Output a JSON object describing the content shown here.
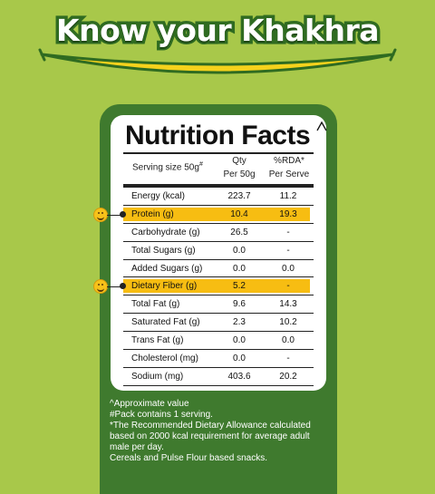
{
  "headline": "Know your Khakhra",
  "label": {
    "title": "Nutrition Facts",
    "title_mark": "^",
    "columns": {
      "serving": "Serving size 50g",
      "serving_mark": "#",
      "qty_line1": "Qty",
      "qty_line2": "Per 50g",
      "rda_line1": "%RDA*",
      "rda_line2": "Per Serve"
    },
    "rows": [
      {
        "name": "Energy (kcal)",
        "qty": "223.7",
        "rda": "11.2"
      },
      {
        "name": "Protein (g)",
        "qty": "10.4",
        "rda": "19.3"
      },
      {
        "name": "Carbohydrate (g)",
        "qty": "26.5",
        "rda": "-"
      },
      {
        "name": "Total Sugars (g)",
        "qty": "0.0",
        "rda": "-"
      },
      {
        "name": "Added Sugars (g)",
        "qty": "0.0",
        "rda": "0.0"
      },
      {
        "name": "Dietary Fiber (g)",
        "qty": "5.2",
        "rda": "-"
      },
      {
        "name": "Total Fat (g)",
        "qty": "9.6",
        "rda": "14.3"
      },
      {
        "name": "Saturated Fat (g)",
        "qty": "2.3",
        "rda": "10.2"
      },
      {
        "name": "Trans Fat (g)",
        "qty": "0.0",
        "rda": "0.0"
      },
      {
        "name": "Cholesterol (mg)",
        "qty": "0.0",
        "rda": "-"
      },
      {
        "name": "Sodium (mg)",
        "qty": "403.6",
        "rda": "20.2"
      }
    ],
    "highlighted_rows": [
      "Protein (g)",
      "Dietary Fiber (g)"
    ]
  },
  "footnotes": [
    "^Approximate value",
    "#Pack contains 1 serving.",
    "*The Recommended Dietary Allowance calculated based on 2000 kcal requirement for average adult male per day.",
    "Cereals and Pulse Flour based snacks."
  ],
  "colors": {
    "background": "#a8c84a",
    "panel": "#3f7a2e",
    "highlight": "#f7bd12",
    "headline_outline": "#2f6b21",
    "smile_curve": "#f5d21c"
  },
  "icons": {
    "highlight_marker": "smiling-face-icon",
    "headline_underline": "smile-curve-icon"
  }
}
